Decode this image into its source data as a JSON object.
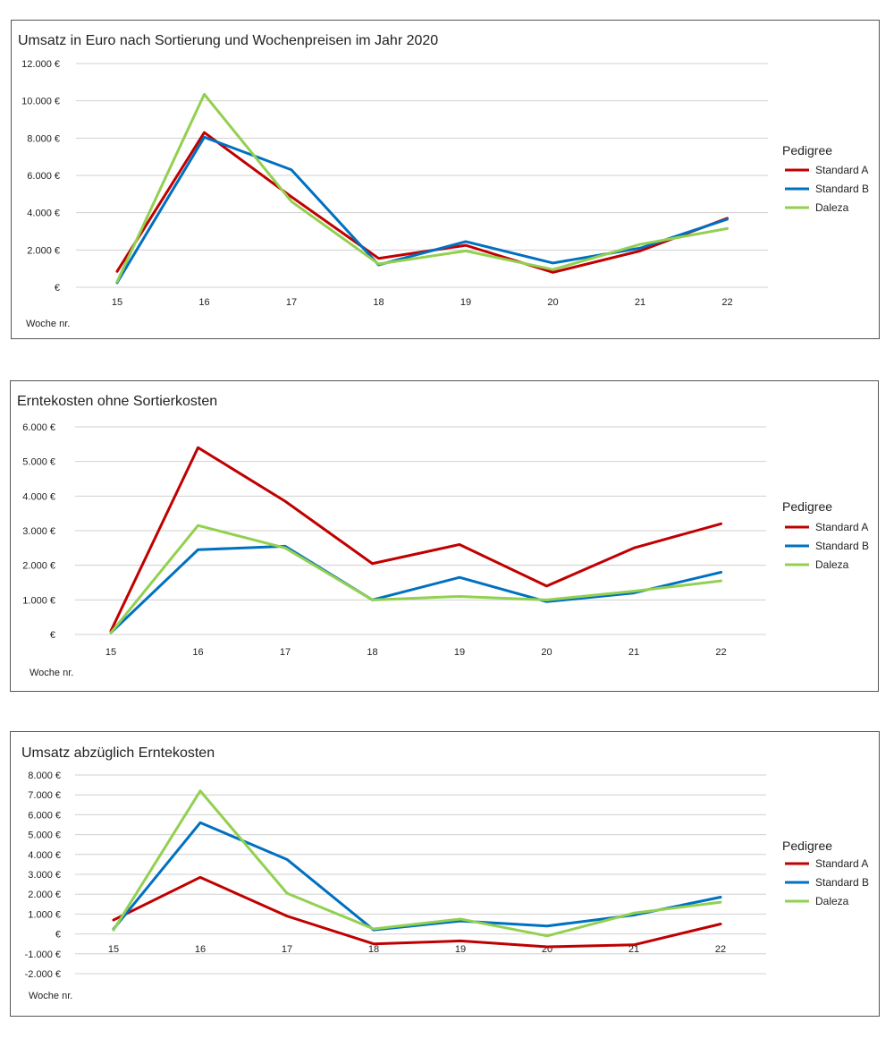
{
  "chart_data": [
    {
      "type": "line",
      "title": "Umsatz in Euro nach Sortierung und Wochenpreisen im Jahr 2020",
      "xlabel": "Woche nr.",
      "ylabel": "",
      "categories": [
        "15",
        "16",
        "17",
        "18",
        "19",
        "20",
        "21",
        "22"
      ],
      "ylim": [
        0,
        12000
      ],
      "y_ticks": [
        0,
        2000,
        4000,
        6000,
        8000,
        10000,
        12000
      ],
      "y_tick_labels": [
        "€",
        "2.000 €",
        "4.000 €",
        "6.000 €",
        "8.000 €",
        "10.000 €",
        "12.000 €"
      ],
      "legend_title": "Pedigree",
      "legend_position": "right",
      "grid": true,
      "series": [
        {
          "name": "Standard A",
          "color": "#c00000",
          "values": [
            850,
            8300,
            4850,
            1550,
            2250,
            800,
            1950,
            3700
          ]
        },
        {
          "name": "Standard B",
          "color": "#0070c0",
          "values": [
            250,
            8050,
            6300,
            1200,
            2450,
            1300,
            2100,
            3650
          ]
        },
        {
          "name": "Daleza",
          "color": "#92d050",
          "values": [
            300,
            10350,
            4600,
            1250,
            1950,
            950,
            2300,
            3150
          ]
        }
      ]
    },
    {
      "type": "line",
      "title": "Erntekosten ohne Sortierkosten",
      "xlabel": "Woche nr.",
      "ylabel": "",
      "categories": [
        "15",
        "16",
        "17",
        "18",
        "19",
        "20",
        "21",
        "22"
      ],
      "ylim": [
        0,
        6000
      ],
      "y_ticks": [
        0,
        1000,
        2000,
        3000,
        4000,
        5000,
        6000
      ],
      "y_tick_labels": [
        "€",
        "1.000 €",
        "2.000 €",
        "3.000 €",
        "4.000 €",
        "5.000 €",
        "6.000 €"
      ],
      "legend_title": "Pedigree",
      "legend_position": "right",
      "grid": true,
      "series": [
        {
          "name": "Standard A",
          "color": "#c00000",
          "values": [
            100,
            5400,
            3850,
            2050,
            2600,
            1400,
            2500,
            3200
          ]
        },
        {
          "name": "Standard B",
          "color": "#0070c0",
          "values": [
            50,
            2450,
            2550,
            1000,
            1650,
            950,
            1200,
            1800
          ]
        },
        {
          "name": "Daleza",
          "color": "#92d050",
          "values": [
            50,
            3150,
            2500,
            1000,
            1100,
            1000,
            1250,
            1550
          ]
        }
      ]
    },
    {
      "type": "line",
      "title": "Umsatz abzüglich Erntekosten",
      "xlabel": "Woche nr.",
      "ylabel": "",
      "categories": [
        "15",
        "16",
        "17",
        "18",
        "19",
        "20",
        "21",
        "22"
      ],
      "ylim": [
        -2000,
        8000
      ],
      "y_ticks": [
        -2000,
        -1000,
        0,
        1000,
        2000,
        3000,
        4000,
        5000,
        6000,
        7000,
        8000
      ],
      "y_tick_labels": [
        "-2.000 €",
        "-1.000 €",
        "€",
        "1.000 €",
        "2.000 €",
        "3.000 €",
        "4.000 €",
        "5.000 €",
        "6.000 €",
        "7.000 €",
        "8.000 €"
      ],
      "legend_title": "Pedigree",
      "legend_position": "right",
      "grid": true,
      "series": [
        {
          "name": "Standard A",
          "color": "#c00000",
          "values": [
            700,
            2850,
            900,
            -500,
            -350,
            -650,
            -550,
            500
          ]
        },
        {
          "name": "Standard B",
          "color": "#0070c0",
          "values": [
            250,
            5600,
            3750,
            200,
            650,
            400,
            950,
            1850
          ]
        },
        {
          "name": "Daleza",
          "color": "#92d050",
          "values": [
            200,
            7200,
            2050,
            250,
            750,
            -100,
            1050,
            1600
          ]
        }
      ]
    }
  ]
}
